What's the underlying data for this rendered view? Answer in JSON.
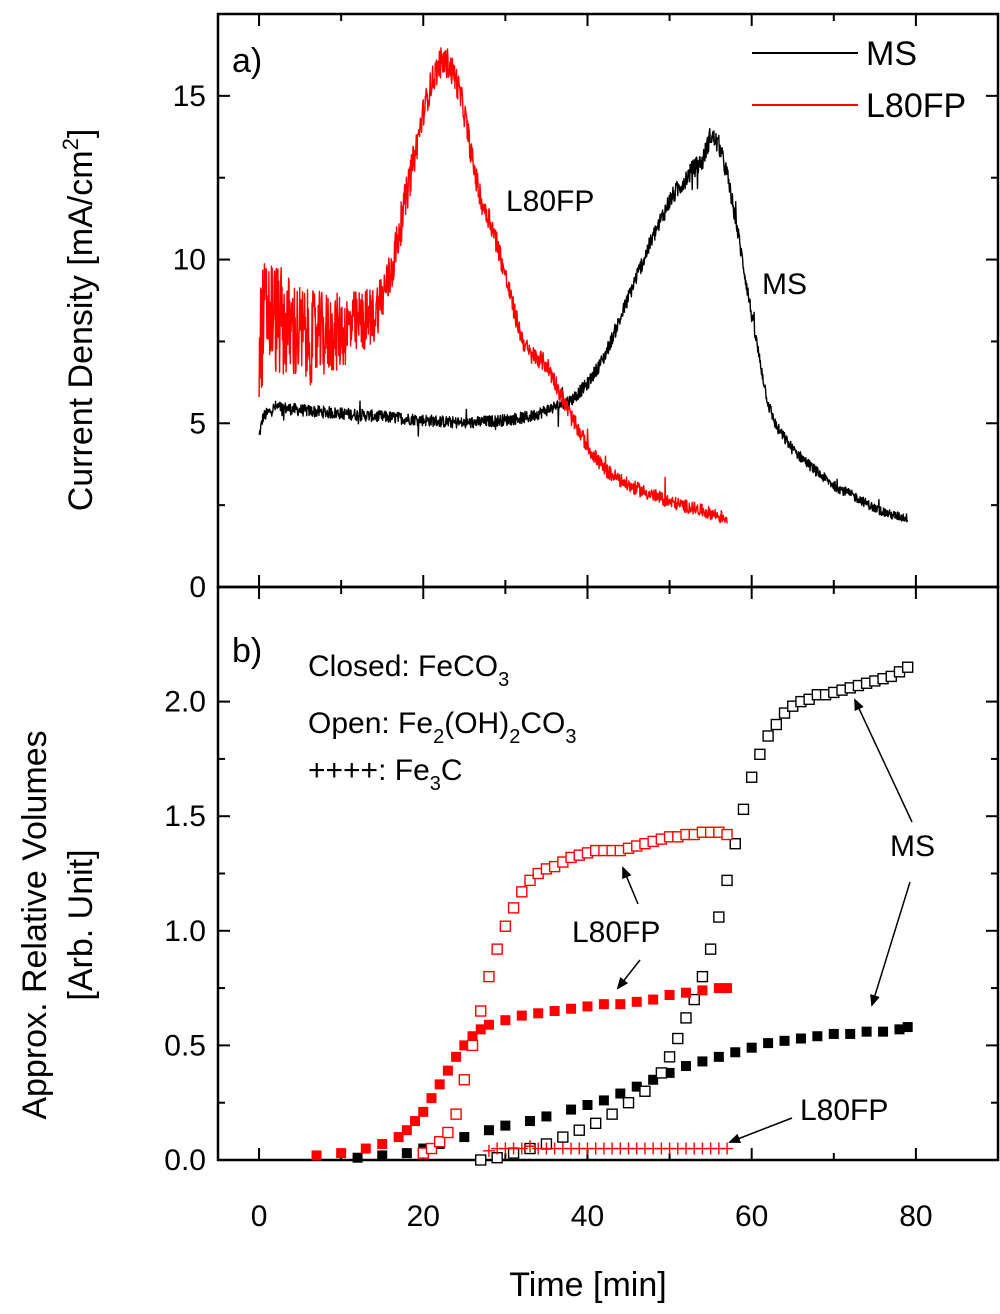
{
  "chart_data": [
    {
      "panel": "a)",
      "type": "line",
      "ylabel_main": "Current Density [mA/cm",
      "ylabel_sup": "2",
      "ylabel_close": "]",
      "xlim": [
        -5,
        90
      ],
      "ylim": [
        0,
        17.5
      ],
      "yticks": [
        0,
        5,
        10,
        15
      ],
      "legend_position": "top-right",
      "colors": {
        "MS": "#000000",
        "L80FP": "#ff0000"
      },
      "series": [
        {
          "name": "MS",
          "x": [
            0,
            0.5,
            2,
            5,
            10,
            15,
            20,
            25,
            30,
            33,
            35,
            38,
            40,
            42,
            44,
            46,
            48,
            50,
            52,
            53,
            54,
            55,
            56,
            57,
            58,
            59,
            60,
            61,
            62,
            63,
            65,
            68,
            70,
            73,
            75,
            77,
            79
          ],
          "y": [
            4.6,
            5.2,
            5.5,
            5.4,
            5.3,
            5.2,
            5.1,
            5.0,
            5.1,
            5.2,
            5.4,
            5.7,
            6.2,
            7.0,
            8.2,
            9.5,
            10.7,
            11.8,
            12.5,
            12.8,
            13.0,
            13.8,
            13.5,
            12.6,
            11.3,
            9.8,
            8.3,
            6.9,
            5.6,
            4.9,
            4.2,
            3.5,
            3.1,
            2.7,
            2.4,
            2.2,
            2.1
          ],
          "noise": 0.18
        },
        {
          "name": "L80FP",
          "x": [
            0,
            1,
            3,
            6,
            10,
            14,
            16,
            18,
            20,
            21,
            22,
            23,
            24,
            25,
            26,
            27,
            28,
            29,
            30,
            31,
            32,
            33,
            34,
            35,
            36,
            38,
            40,
            42,
            45,
            48,
            50,
            53,
            55,
            57
          ],
          "y": [
            7.5,
            8.5,
            8.0,
            7.6,
            7.8,
            8.3,
            9.5,
            12.0,
            14.5,
            15.4,
            16.0,
            16.0,
            15.5,
            14.5,
            13.0,
            11.8,
            11.3,
            10.5,
            9.5,
            8.5,
            7.6,
            7.1,
            7.0,
            6.8,
            6.3,
            5.2,
            4.3,
            3.6,
            3.1,
            2.8,
            2.6,
            2.4,
            2.25,
            2.1
          ],
          "noise": 0.25
        }
      ],
      "annotations": [
        "L80FP",
        "MS"
      ],
      "ms_label": "MS",
      "l80fp_label": "L80FP"
    },
    {
      "panel": "b)",
      "type": "scatter",
      "ylabel_line1": "Approx. Relative Volumes",
      "ylabel_line2": "[Arb. Unit]",
      "xlabel": "Time [min]",
      "xlim": [
        -5,
        90
      ],
      "ylim": [
        0,
        2.5
      ],
      "xticks": [
        0,
        20,
        40,
        60,
        80
      ],
      "yticks": [
        "0.0",
        "0.5",
        "1.0",
        "1.5",
        "2.0"
      ],
      "legend_note": {
        "closed_prefix": "Closed: FeCO",
        "closed_sub": "3",
        "open_prefix": "Open: Fe",
        "open_sub1": "2",
        "open_mid": "(OH)",
        "open_sub2": "2",
        "open_mid2": "CO",
        "open_sub3": "3",
        "plus_prefix": "++++: Fe",
        "plus_sub": "3",
        "plus_suffix": "C"
      },
      "series": [
        {
          "name": "MS FeCO3 (closed)",
          "marker": "filled-square",
          "color": "#000000",
          "x": [
            12,
            15,
            18,
            20,
            22,
            25,
            28,
            30,
            33,
            35,
            38,
            40,
            42,
            44,
            46,
            48,
            50,
            52,
            54,
            56,
            58,
            60,
            62,
            64,
            66,
            68,
            70,
            72,
            74,
            76,
            78,
            79
          ],
          "y": [
            0.01,
            0.02,
            0.03,
            0.05,
            0.07,
            0.1,
            0.13,
            0.15,
            0.17,
            0.19,
            0.22,
            0.24,
            0.26,
            0.29,
            0.32,
            0.35,
            0.38,
            0.41,
            0.43,
            0.45,
            0.47,
            0.49,
            0.51,
            0.52,
            0.53,
            0.54,
            0.55,
            0.55,
            0.56,
            0.56,
            0.57,
            0.58
          ]
        },
        {
          "name": "MS Fe2(OH)2CO3 (open)",
          "marker": "open-square",
          "color": "#000000",
          "x": [
            27,
            29,
            31,
            33,
            35,
            37,
            39,
            41,
            43,
            45,
            47,
            49,
            50,
            51,
            52,
            53,
            54,
            55,
            56,
            57,
            58,
            59,
            60,
            61,
            62,
            63,
            64,
            65,
            66,
            67,
            68,
            69,
            70,
            71,
            72,
            73,
            74,
            75,
            76,
            77,
            78,
            79
          ],
          "y": [
            0.0,
            0.01,
            0.03,
            0.05,
            0.07,
            0.1,
            0.13,
            0.16,
            0.2,
            0.25,
            0.3,
            0.38,
            0.45,
            0.53,
            0.62,
            0.7,
            0.8,
            0.92,
            1.06,
            1.22,
            1.38,
            1.53,
            1.67,
            1.77,
            1.85,
            1.9,
            1.95,
            1.98,
            2.0,
            2.01,
            2.03,
            2.03,
            2.04,
            2.05,
            2.06,
            2.07,
            2.08,
            2.09,
            2.1,
            2.11,
            2.13,
            2.15
          ]
        },
        {
          "name": "L80FP FeCO3 (closed)",
          "marker": "filled-square",
          "color": "#ff0000",
          "x": [
            7,
            10,
            13,
            15,
            17,
            18,
            19,
            20,
            21,
            22,
            23,
            24,
            25,
            26,
            27,
            28,
            30,
            32,
            34,
            36,
            38,
            40,
            42,
            44,
            46,
            48,
            50,
            52,
            54,
            56,
            57
          ],
          "y": [
            0.02,
            0.03,
            0.05,
            0.07,
            0.1,
            0.13,
            0.17,
            0.21,
            0.27,
            0.33,
            0.39,
            0.45,
            0.5,
            0.54,
            0.57,
            0.59,
            0.61,
            0.63,
            0.64,
            0.65,
            0.66,
            0.67,
            0.68,
            0.68,
            0.69,
            0.7,
            0.72,
            0.73,
            0.74,
            0.75,
            0.75
          ]
        },
        {
          "name": "L80FP Fe2(OH)2CO3 (open)",
          "marker": "open-square",
          "color": "#ff0000",
          "x": [
            20,
            21,
            22,
            23,
            24,
            25,
            26,
            27,
            28,
            29,
            30,
            31,
            32,
            33,
            34,
            35,
            36,
            37,
            38,
            39,
            40,
            41,
            42,
            43,
            44,
            45,
            46,
            47,
            48,
            49,
            50,
            51,
            52,
            53,
            54,
            55,
            56,
            57
          ],
          "y": [
            0.03,
            0.05,
            0.08,
            0.12,
            0.2,
            0.35,
            0.5,
            0.65,
            0.8,
            0.92,
            1.02,
            1.1,
            1.17,
            1.22,
            1.25,
            1.27,
            1.28,
            1.3,
            1.32,
            1.33,
            1.34,
            1.35,
            1.35,
            1.35,
            1.35,
            1.36,
            1.37,
            1.38,
            1.39,
            1.4,
            1.41,
            1.41,
            1.42,
            1.42,
            1.43,
            1.43,
            1.43,
            1.42
          ]
        },
        {
          "name": "L80FP Fe3C (plus)",
          "marker": "plus",
          "color": "#ff0000",
          "x": [
            28,
            29,
            30,
            31,
            32,
            33,
            34,
            35,
            36,
            37,
            38,
            39,
            40,
            41,
            42,
            43,
            44,
            45,
            46,
            47,
            48,
            49,
            50,
            51,
            52,
            53,
            54,
            55,
            56,
            57
          ],
          "y": [
            0.04,
            0.05,
            0.05,
            0.05,
            0.05,
            0.06,
            0.05,
            0.05,
            0.05,
            0.05,
            0.05,
            0.05,
            0.05,
            0.05,
            0.05,
            0.05,
            0.05,
            0.05,
            0.05,
            0.05,
            0.05,
            0.05,
            0.05,
            0.05,
            0.05,
            0.05,
            0.05,
            0.05,
            0.05,
            0.05
          ]
        }
      ],
      "ms_label": "MS",
      "l80fp_label_upper": "L80FP",
      "l80fp_label_lower": "L80FP"
    }
  ]
}
